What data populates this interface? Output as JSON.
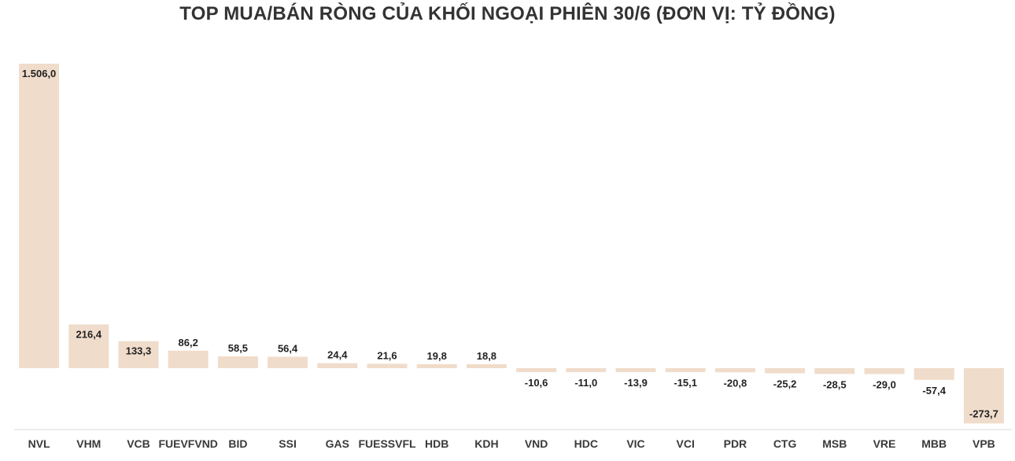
{
  "chart_data": {
    "type": "bar",
    "title": "TOP MUA/BÁN RÒNG CỦA KHỐI NGOẠI PHIÊN 30/6 (ĐƠN VỊ: TỶ ĐỒNG)",
    "xlabel": "",
    "ylabel": "",
    "categories": [
      "NVL",
      "VHM",
      "VCB",
      "FUEVFVND",
      "BID",
      "SSI",
      "GAS",
      "FUESSVFL",
      "HDB",
      "KDH",
      "VND",
      "HDC",
      "VIC",
      "VCI",
      "PDR",
      "CTG",
      "MSB",
      "VRE",
      "MBB",
      "VPB"
    ],
    "values": [
      1506.0,
      216.4,
      133.3,
      86.2,
      58.5,
      56.4,
      24.4,
      21.6,
      19.8,
      18.8,
      -10.6,
      -11.0,
      -13.9,
      -15.1,
      -20.8,
      -25.2,
      -28.5,
      -29.0,
      -57.4,
      -273.7
    ],
    "data_labels": [
      "1.506,0",
      "216,4",
      "133,3",
      "86,2",
      "58,5",
      "56,4",
      "24,4",
      "21,6",
      "19,8",
      "18,8",
      "-10,6",
      "-11,0",
      "-13,9",
      "-15,1",
      "-20,8",
      "-25,2",
      "-28,5",
      "-29,0",
      "-57,4",
      "-273,7"
    ],
    "ylim": [
      -300,
      1506
    ],
    "grid": false,
    "legend": "none",
    "bar_color": "#f0dccb",
    "axis_color": "#d9d9d9"
  }
}
